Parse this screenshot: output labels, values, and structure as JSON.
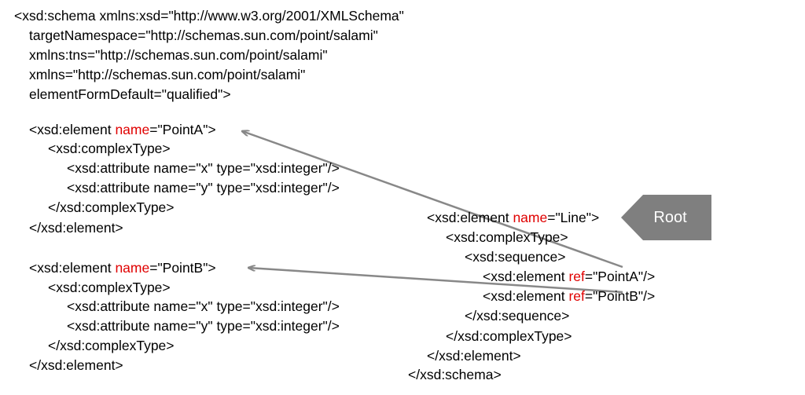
{
  "schema_header": [
    "<xsd:schema xmlns:xsd=\"http://www.w3.org/2001/XMLSchema\"",
    "targetNamespace=\"http://schemas.sun.com/point/salami\"",
    "xmlns:tns=\"http://schemas.sun.com/point/salami\"",
    "xmlns=\"http://schemas.sun.com/point/salami\"",
    "elementFormDefault=\"qualified\">"
  ],
  "point_a": {
    "open": [
      "<xsd:element ",
      "name",
      "=\"PointA\">"
    ],
    "body": [
      "<xsd:complexType>",
      "<xsd:attribute name=\"x\" type=\"xsd:integer\"/>",
      "<xsd:attribute name=\"y\" type=\"xsd:integer\"/>",
      "</xsd:complexType>",
      "</xsd:element>"
    ]
  },
  "point_b": {
    "open": [
      "<xsd:element ",
      "name",
      "=\"PointB\">"
    ],
    "body": [
      "<xsd:complexType>",
      "<xsd:attribute name=\"x\" type=\"xsd:integer\"/>",
      "<xsd:attribute name=\"y\" type=\"xsd:integer\"/>",
      "</xsd:complexType>",
      "</xsd:element>"
    ]
  },
  "line_element": {
    "open": [
      "<xsd:element ",
      "name",
      "=\"Line\">"
    ],
    "complex_open": "<xsd:complexType>",
    "sequence_open": "<xsd:sequence>",
    "ref_a": [
      "<xsd:element ",
      "ref",
      "=\"PointA\"/>"
    ],
    "ref_b": [
      "<xsd:element ",
      "ref",
      "=\"PointB\"/>"
    ],
    "sequence_close": "</xsd:sequence>",
    "complex_close": "</xsd:complexType>",
    "element_close": "</xsd:element>"
  },
  "schema_close": "</xsd:schema>",
  "callout": {
    "label": "Root"
  }
}
